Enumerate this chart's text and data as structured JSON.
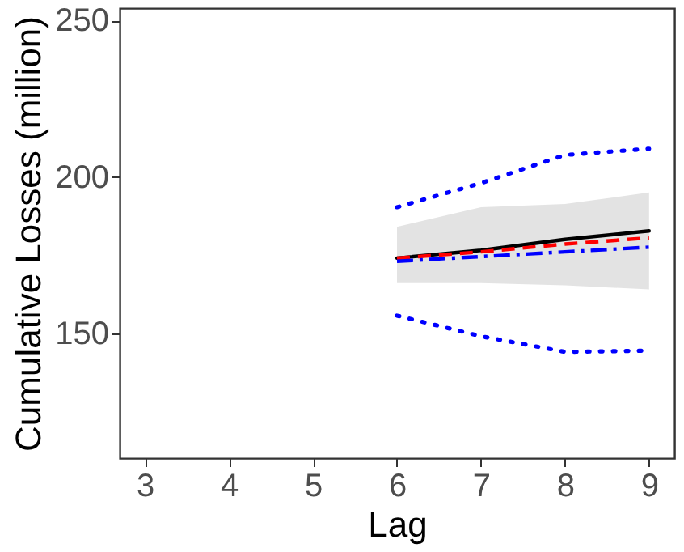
{
  "chart_data": {
    "type": "line",
    "xlabel": "Lag",
    "ylabel": "Cumulative Losses (million)",
    "x": [
      6,
      7,
      8,
      9
    ],
    "xlim": [
      2.7,
      9.3
    ],
    "xticks": [
      3,
      4,
      5,
      6,
      7,
      8,
      9
    ],
    "ylim": [
      110,
      254
    ],
    "yticks": [
      150,
      200,
      250
    ],
    "marker": "none",
    "series": [
      {
        "color": "#000000",
        "line_style": "solid",
        "values": [
          174,
          176.5,
          180,
          182.7
        ],
        "lower": [
          166,
          166,
          165.3,
          164
        ],
        "upper": [
          184,
          190.3,
          191.3,
          195
        ]
      },
      {
        "color": "#ff0000",
        "line_style": "dashed",
        "values": [
          174,
          176,
          178.5,
          180.5
        ]
      },
      {
        "color": "#0000ff",
        "line_style": "dashdot",
        "values": [
          173,
          174.5,
          176,
          177.5
        ]
      },
      {
        "color": "#0000ff",
        "line_style": "dotted",
        "values": [
          190.3,
          198,
          207,
          209
        ]
      },
      {
        "color": "#0000ff",
        "line_style": "dotted",
        "values": [
          155.6,
          149,
          144,
          144.4
        ]
      }
    ]
  }
}
